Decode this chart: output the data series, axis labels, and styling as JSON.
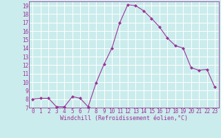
{
  "x": [
    0,
    1,
    2,
    3,
    4,
    5,
    6,
    7,
    8,
    9,
    10,
    11,
    12,
    13,
    14,
    15,
    16,
    17,
    18,
    19,
    20,
    21,
    22,
    23
  ],
  "y": [
    8,
    8.1,
    8.1,
    7.1,
    7.1,
    8.3,
    8.1,
    7.1,
    9.9,
    12.1,
    14.0,
    17.0,
    19.1,
    19.0,
    18.4,
    17.5,
    16.5,
    15.2,
    14.3,
    14.0,
    11.7,
    11.4,
    11.5,
    9.4
  ],
  "line_color": "#993399",
  "marker": "D",
  "marker_size": 2.0,
  "bg_color": "#cbecec",
  "grid_color": "#ffffff",
  "xlabel": "Windchill (Refroidissement éolien,°C)",
  "xlabel_color": "#993399",
  "tick_color": "#993399",
  "ylim": [
    7,
    19.5
  ],
  "xlim": [
    -0.5,
    23.5
  ],
  "yticks": [
    7,
    8,
    9,
    10,
    11,
    12,
    13,
    14,
    15,
    16,
    17,
    18,
    19
  ],
  "xticks": [
    0,
    1,
    2,
    3,
    4,
    5,
    6,
    7,
    8,
    9,
    10,
    11,
    12,
    13,
    14,
    15,
    16,
    17,
    18,
    19,
    20,
    21,
    22,
    23
  ],
  "tick_fontsize": 5.5,
  "xlabel_fontsize": 6.0,
  "linewidth": 0.8
}
